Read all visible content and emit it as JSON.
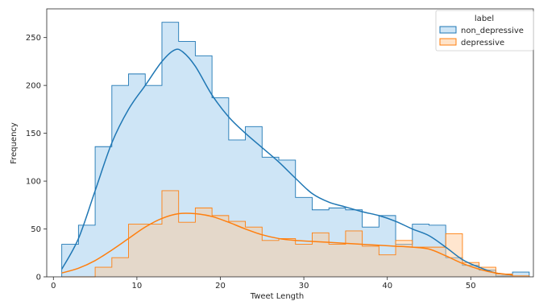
{
  "chart_data": {
    "type": "histogram",
    "title": "",
    "xlabel": "Tweet Length",
    "ylabel": "Frequency",
    "xlim": [
      -0.8,
      57.5
    ],
    "ylim": [
      0,
      280
    ],
    "x_ticks": [
      0,
      10,
      20,
      30,
      40,
      50
    ],
    "y_ticks": [
      0,
      50,
      100,
      150,
      200,
      250
    ],
    "grid": false,
    "bin_edges": [
      1,
      3,
      5,
      7,
      9,
      11,
      13,
      15,
      17,
      19,
      21,
      23,
      25,
      27,
      29,
      31,
      33,
      35,
      37,
      39,
      41,
      43,
      45,
      47,
      49,
      51,
      53,
      55,
      57
    ],
    "legend": {
      "title": "label",
      "placement": "top-right",
      "entries": [
        "non_depressive",
        "depressive"
      ]
    },
    "series": [
      {
        "name": "non_depressive",
        "color": "#1f77b4",
        "fill": "#aed3f0",
        "counts": [
          34,
          54,
          136,
          200,
          212,
          200,
          266,
          246,
          231,
          187,
          143,
          157,
          125,
          122,
          83,
          70,
          72,
          70,
          52,
          64,
          34,
          55,
          54,
          20,
          12,
          7,
          1,
          5
        ],
        "kde_x": [
          1,
          3,
          5,
          7,
          9,
          11,
          13,
          14.5,
          15.5,
          17,
          19,
          21,
          23,
          25,
          27,
          29,
          31,
          33,
          35,
          37,
          39,
          41,
          43,
          45,
          47,
          49,
          51,
          53,
          55
        ],
        "kde_y": [
          8,
          40,
          90,
          140,
          175,
          200,
          225,
          237,
          235,
          220,
          190,
          167,
          150,
          135,
          120,
          103,
          87,
          78,
          73,
          68,
          64,
          58,
          50,
          43,
          31,
          18,
          10,
          4,
          2
        ]
      },
      {
        "name": "depressive",
        "color": "#ff7f0e",
        "fill": "#ffc894",
        "counts": [
          0,
          0,
          10,
          20,
          55,
          55,
          90,
          57,
          72,
          64,
          58,
          52,
          38,
          40,
          34,
          46,
          34,
          48,
          32,
          23,
          38,
          31,
          31,
          45,
          15,
          10,
          3,
          1
        ],
        "kde_x": [
          1,
          3,
          5,
          7,
          9,
          11,
          13,
          15,
          17,
          19,
          21,
          23,
          25,
          27,
          29,
          31,
          33,
          35,
          37,
          39,
          41,
          43,
          45,
          47,
          49,
          51,
          53,
          55
        ],
        "kde_y": [
          4,
          9,
          17,
          28,
          40,
          52,
          61,
          66,
          66,
          63,
          57,
          50,
          44,
          40,
          38,
          37,
          36,
          35,
          34,
          33,
          32,
          31,
          29,
          22,
          14,
          8,
          4,
          2
        ]
      }
    ]
  }
}
